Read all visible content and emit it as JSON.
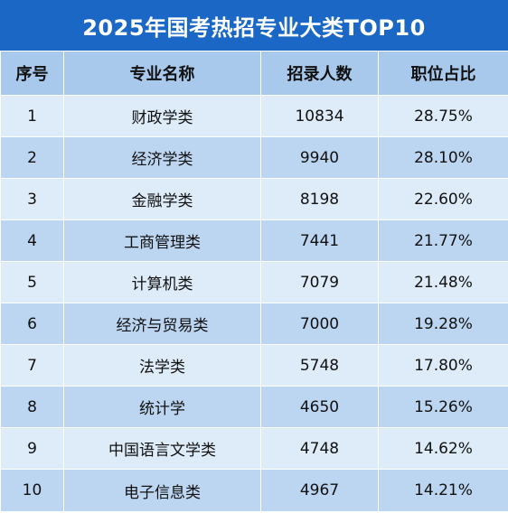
{
  "title": "2025年国考热招专业大类TOP10",
  "headers": [
    "序号",
    "专业名称",
    "招录人数",
    "职位占比"
  ],
  "rows": [
    [
      "1",
      "财政学类",
      "10834",
      "28.75%"
    ],
    [
      "2",
      "经济学类",
      "9940",
      "28.10%"
    ],
    [
      "3",
      "金融学类",
      "8198",
      "22.60%"
    ],
    [
      "4",
      "工商管理类",
      "7441",
      "21.77%"
    ],
    [
      "5",
      "计算机类",
      "7079",
      "21.48%"
    ],
    [
      "6",
      "经济与贸易类",
      "7000",
      "19.28%"
    ],
    [
      "7",
      "法学类",
      "5748",
      "17.80%"
    ],
    [
      "8",
      "统计学",
      "4650",
      "15.26%"
    ],
    [
      "9",
      "中国语言文学类",
      "4748",
      "14.62%"
    ],
    [
      "10",
      "电子信息类",
      "4967",
      "14.21%"
    ]
  ],
  "colors": {
    "title_bg": "#1a67c6",
    "header_bg": "#a8c8ec",
    "row_light": "#deebf8",
    "row_dark": "#bcd5f0"
  }
}
